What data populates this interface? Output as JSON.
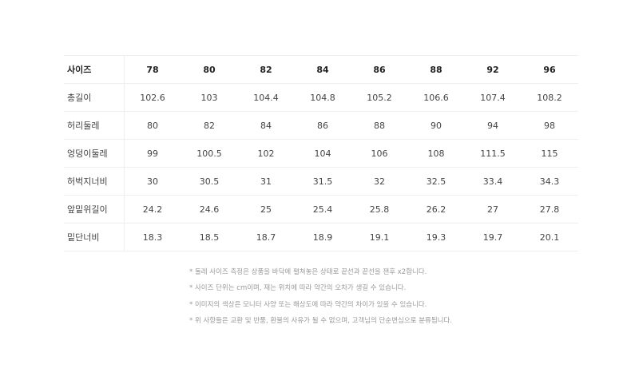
{
  "table": {
    "header": {
      "label": "사이즈",
      "sizes": [
        "78",
        "80",
        "82",
        "84",
        "86",
        "88",
        "92",
        "96"
      ]
    },
    "rows": [
      {
        "label": "총길이",
        "values": [
          "102.6",
          "103",
          "104.4",
          "104.8",
          "105.2",
          "106.6",
          "107.4",
          "108.2"
        ]
      },
      {
        "label": "허리둘레",
        "values": [
          "80",
          "82",
          "84",
          "86",
          "88",
          "90",
          "94",
          "98"
        ]
      },
      {
        "label": "엉덩이둘레",
        "values": [
          "99",
          "100.5",
          "102",
          "104",
          "106",
          "108",
          "111.5",
          "115"
        ]
      },
      {
        "label": "허벅지너비",
        "values": [
          "30",
          "30.5",
          "31",
          "31.5",
          "32",
          "32.5",
          "33.4",
          "34.3"
        ]
      },
      {
        "label": "앞밑위길이",
        "values": [
          "24.2",
          "24.6",
          "25",
          "25.4",
          "25.8",
          "26.2",
          "27",
          "27.8"
        ]
      },
      {
        "label": "밑단너비",
        "values": [
          "18.3",
          "18.5",
          "18.7",
          "18.9",
          "19.1",
          "19.3",
          "19.7",
          "20.1"
        ]
      }
    ]
  },
  "notes": [
    "* 둘레 사이즈 측정은 상품을 바닥에 펼쳐놓은 상태로 끝선과 끝선을 잰후 x2합니다.",
    "* 사이즈 단위는 cm이며, 재는 위치에 따라 약간의 오차가 생길 수 있습니다.",
    "* 이미지의 색상은 모니터 사양 또는 해상도에 따라 약간의 차이가 있을 수 있습니다.",
    "* 위 사항들은 교환 및 반품, 환불의 사유가 될 수 없으며, 고객님의 단순변심으로 분류됩니다."
  ]
}
